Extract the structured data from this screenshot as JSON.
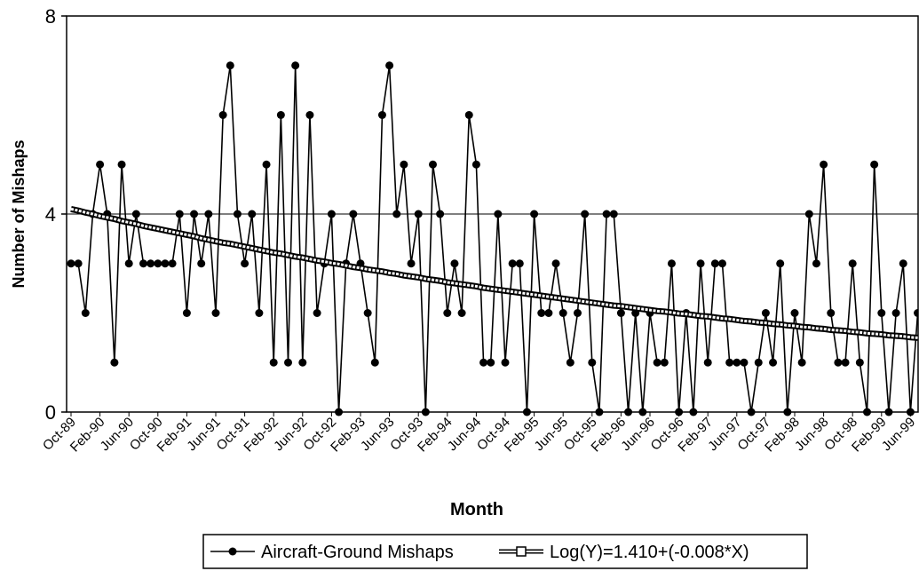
{
  "chart_data": {
    "type": "line",
    "x_label": "Month",
    "y_label": "Number of Mishaps",
    "ylim": [
      0,
      8
    ],
    "yticks": [
      0,
      4,
      8
    ],
    "grid": true,
    "categories": [
      "Oct-89",
      null,
      null,
      null,
      "Feb-90",
      null,
      null,
      null,
      "Jun-90",
      null,
      null,
      null,
      "Oct-90",
      null,
      null,
      null,
      "Feb-91",
      null,
      null,
      null,
      "Jun-91",
      null,
      null,
      null,
      "Oct-91",
      null,
      null,
      null,
      "Feb-92",
      null,
      null,
      null,
      "Jun-92",
      null,
      null,
      null,
      "Oct-92",
      null,
      null,
      null,
      "Feb-93",
      null,
      null,
      null,
      "Jun-93",
      null,
      null,
      null,
      "Oct-93",
      null,
      null,
      null,
      "Feb-94",
      null,
      null,
      null,
      "Jun-94",
      null,
      null,
      null,
      "Oct-94",
      null,
      null,
      null,
      "Feb-95",
      null,
      null,
      null,
      "Jun-95",
      null,
      null,
      null,
      "Oct-95",
      null,
      null,
      null,
      "Feb-96",
      null,
      null,
      null,
      "Jun-96",
      null,
      null,
      null,
      "Oct-96",
      null,
      null,
      null,
      "Feb-97",
      null,
      null,
      null,
      "Jun-97",
      null,
      null,
      null,
      "Oct-97",
      null,
      null,
      null,
      "Feb-98",
      null,
      null,
      null,
      "Jun-98",
      null,
      null,
      null,
      "Oct-98",
      null,
      null,
      null,
      "Feb-99",
      null,
      null,
      null,
      "Jun-99",
      null
    ],
    "series": [
      {
        "name": "Aircraft-Ground Mishaps",
        "color": "#000000",
        "marker": "circle",
        "values": [
          3,
          3,
          2,
          4,
          5,
          4,
          1,
          5,
          3,
          4,
          3,
          3,
          3,
          3,
          3,
          4,
          2,
          4,
          3,
          4,
          2,
          6,
          7,
          4,
          3,
          4,
          2,
          5,
          1,
          6,
          1,
          7,
          1,
          6,
          2,
          3,
          4,
          0,
          3,
          4,
          3,
          2,
          1,
          6,
          7,
          4,
          5,
          3,
          4,
          0,
          5,
          4,
          2,
          3,
          2,
          6,
          5,
          1,
          1,
          4,
          1,
          3,
          3,
          0,
          4,
          2,
          2,
          3,
          2,
          1,
          2,
          4,
          1,
          0,
          4,
          4,
          2,
          0,
          2,
          0,
          2,
          1,
          1,
          3,
          0,
          2,
          0,
          3,
          1,
          3,
          3,
          1,
          1,
          1,
          0,
          1,
          2,
          1,
          3,
          0,
          2,
          1,
          4,
          3,
          5,
          2,
          1,
          1,
          3,
          1,
          0,
          5,
          2,
          0,
          2,
          3,
          0,
          2
        ]
      },
      {
        "name": "Log(Y)=1.410+(-0.008*X)",
        "color": "#000000",
        "marker": "square",
        "values": [
          4.1,
          4.07,
          4.03,
          4.0,
          3.96,
          3.93,
          3.9,
          3.86,
          3.83,
          3.8,
          3.76,
          3.73,
          3.7,
          3.67,
          3.64,
          3.61,
          3.58,
          3.55,
          3.51,
          3.48,
          3.45,
          3.42,
          3.4,
          3.37,
          3.34,
          3.31,
          3.28,
          3.25,
          3.22,
          3.2,
          3.17,
          3.14,
          3.12,
          3.09,
          3.06,
          3.04,
          3.01,
          2.99,
          2.96,
          2.93,
          2.91,
          2.88,
          2.86,
          2.84,
          2.81,
          2.79,
          2.76,
          2.74,
          2.72,
          2.69,
          2.67,
          2.65,
          2.62,
          2.6,
          2.58,
          2.56,
          2.54,
          2.51,
          2.49,
          2.47,
          2.45,
          2.43,
          2.41,
          2.39,
          2.37,
          2.35,
          2.33,
          2.31,
          2.29,
          2.27,
          2.25,
          2.23,
          2.21,
          2.19,
          2.17,
          2.15,
          2.14,
          2.12,
          2.1,
          2.08,
          2.06,
          2.04,
          2.03,
          2.01,
          1.99,
          1.98,
          1.96,
          1.94,
          1.93,
          1.91,
          1.89,
          1.88,
          1.86,
          1.84,
          1.83,
          1.81,
          1.8,
          1.78,
          1.77,
          1.75,
          1.74,
          1.72,
          1.71,
          1.69,
          1.68,
          1.66,
          1.65,
          1.64,
          1.62,
          1.61,
          1.59,
          1.58,
          1.57,
          1.55,
          1.54,
          1.53,
          1.51,
          1.5
        ]
      }
    ]
  }
}
